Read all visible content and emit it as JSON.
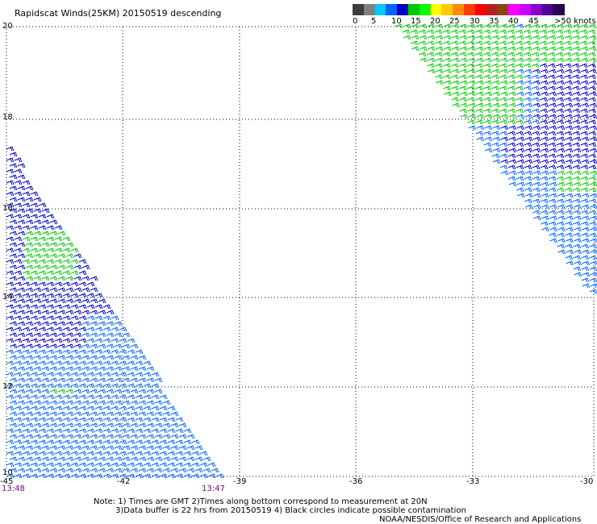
{
  "title": "Rapidscat Winds(25KM) 20150519 descending",
  "colorbar": {
    "labels": [
      "0",
      "5",
      "10",
      "15",
      "20",
      "25",
      "30",
      "35",
      "40",
      "45",
      ">50 knots"
    ],
    "colors": [
      "#3c3c3c",
      "#7f7f7f",
      "#00c8ff",
      "#0064ff",
      "#0000c8",
      "#00c800",
      "#00ff00",
      "#ffff00",
      "#ffc800",
      "#ff8c00",
      "#ff3c00",
      "#ff0000",
      "#b41e1e",
      "#8c4614",
      "#ff00ff",
      "#c800ff",
      "#8c00c8",
      "#500096",
      "#2a0050"
    ]
  },
  "axes": {
    "lat_labels": [
      "20",
      "18",
      "16",
      "14",
      "12",
      "10"
    ],
    "lon_labels": [
      "-45",
      "-42",
      "-39",
      "-36",
      "-33",
      "-30"
    ],
    "time_labels": [
      "13:48",
      "13:47"
    ]
  },
  "notes": {
    "line1": "Note: 1) Times are GMT 2)Times along bottom correspond to measurement at 20N",
    "line2": "3)Data buffer is 22 hrs from 20150519 4) Black circles indicate possible contamination",
    "credit": "NOAA/NESDIS/Office of Research and Applications"
  },
  "colors": {
    "grid": "#000000",
    "barb_blue": "#0000c8",
    "barb_light_blue": "#0064ff",
    "barb_green": "#00c800",
    "time_color": "#7a007a"
  }
}
